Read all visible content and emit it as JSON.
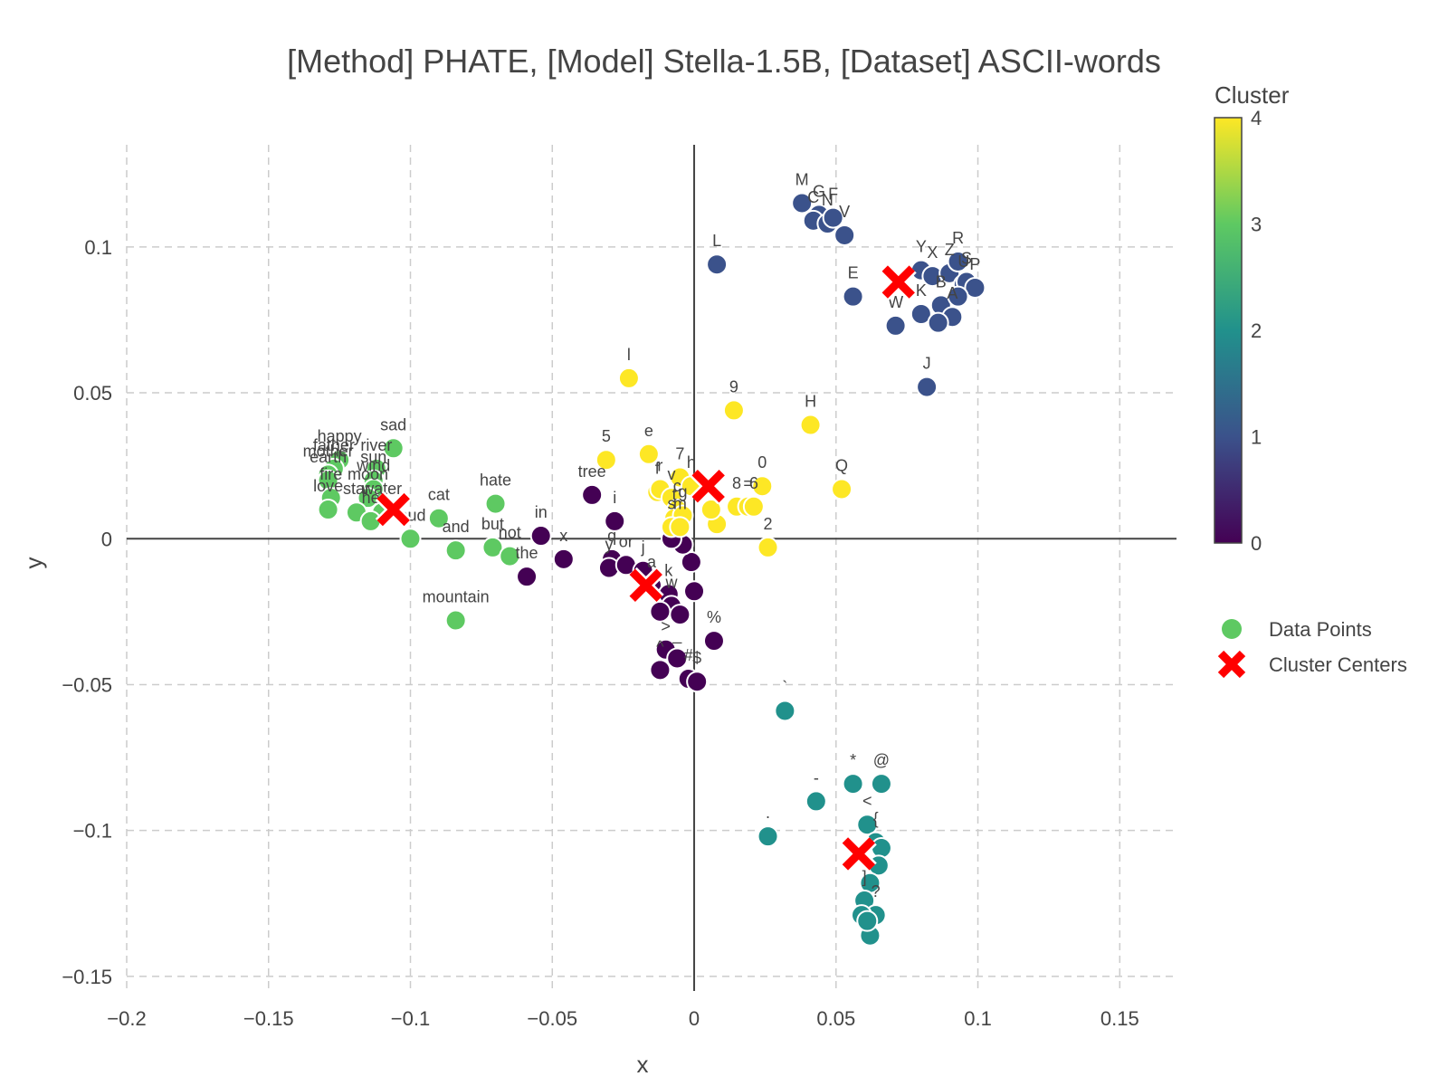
{
  "chart_data": {
    "type": "scatter",
    "title": "[Method] PHATE, [Model] Stella-1.5B, [Dataset] ASCII-words",
    "xlabel": "x",
    "ylabel": "y",
    "xlim": [
      -0.2,
      0.17
    ],
    "ylim": [
      -0.155,
      0.135
    ],
    "x_ticks": [
      -0.2,
      -0.15,
      -0.1,
      -0.05,
      0,
      0.05,
      0.1,
      0.15
    ],
    "x_tick_labels": [
      "−0.2",
      "−0.15",
      "−0.1",
      "−0.05",
      "0",
      "0.05",
      "0.1",
      "0.15"
    ],
    "y_ticks": [
      -0.15,
      -0.1,
      -0.05,
      0,
      0.05,
      0.1
    ],
    "y_tick_labels": [
      "−0.15",
      "−0.1",
      "−0.05",
      "0",
      "0.05",
      "0.1"
    ],
    "colorbar": {
      "title": "Cluster",
      "range": [
        0,
        4
      ],
      "ticks": [
        0,
        1,
        2,
        3,
        4
      ],
      "tick_labels": [
        "0",
        "1",
        "2",
        "3",
        "4"
      ],
      "colors": [
        "#440154",
        "#3b528b",
        "#21918c",
        "#5ec962",
        "#fde725"
      ]
    },
    "legend": [
      {
        "name": "Data Points",
        "marker": "circle",
        "color": "#5ec962"
      },
      {
        "name": "Cluster Centers",
        "marker": "x",
        "color": "#ff0000"
      }
    ],
    "centers": [
      {
        "cluster": 0,
        "x": -0.017,
        "y": -0.016
      },
      {
        "cluster": 1,
        "x": 0.072,
        "y": 0.088
      },
      {
        "cluster": 2,
        "x": 0.058,
        "y": -0.108
      },
      {
        "cluster": 3,
        "x": -0.106,
        "y": 0.01
      },
      {
        "cluster": 4,
        "x": 0.005,
        "y": 0.018
      }
    ],
    "points": [
      {
        "label": "happy",
        "x": -0.125,
        "y": 0.027,
        "cluster": 3
      },
      {
        "label": "father",
        "x": -0.127,
        "y": 0.024,
        "cluster": 3
      },
      {
        "label": "river",
        "x": -0.112,
        "y": 0.024,
        "cluster": 3
      },
      {
        "label": "sad",
        "x": -0.106,
        "y": 0.031,
        "cluster": 3
      },
      {
        "label": "mother",
        "x": -0.129,
        "y": 0.022,
        "cluster": 3
      },
      {
        "label": "earth",
        "x": -0.129,
        "y": 0.02,
        "cluster": 3
      },
      {
        "label": "sun",
        "x": -0.113,
        "y": 0.02,
        "cluster": 3
      },
      {
        "label": "wind",
        "x": -0.113,
        "y": 0.017,
        "cluster": 3
      },
      {
        "label": "fire",
        "x": -0.128,
        "y": 0.014,
        "cluster": 3
      },
      {
        "label": "moon",
        "x": -0.115,
        "y": 0.014,
        "cluster": 3
      },
      {
        "label": "love",
        "x": -0.129,
        "y": 0.01,
        "cluster": 3
      },
      {
        "label": "star",
        "x": -0.119,
        "y": 0.009,
        "cluster": 3
      },
      {
        "label": "water",
        "x": -0.11,
        "y": 0.009,
        "cluster": 3
      },
      {
        "label": "he",
        "x": -0.114,
        "y": 0.006,
        "cluster": 3
      },
      {
        "label": "loud",
        "x": -0.1,
        "y": 0.0,
        "cluster": 3
      },
      {
        "label": "cat",
        "x": -0.09,
        "y": 0.007,
        "cluster": 3
      },
      {
        "label": "hate",
        "x": -0.07,
        "y": 0.012,
        "cluster": 3
      },
      {
        "label": "and",
        "x": -0.084,
        "y": -0.004,
        "cluster": 3
      },
      {
        "label": "but",
        "x": -0.071,
        "y": -0.003,
        "cluster": 3
      },
      {
        "label": "not",
        "x": -0.065,
        "y": -0.006,
        "cluster": 3
      },
      {
        "label": "mountain",
        "x": -0.084,
        "y": -0.028,
        "cluster": 3
      },
      {
        "label": "in",
        "x": -0.054,
        "y": 0.001,
        "cluster": 0
      },
      {
        "label": "x",
        "x": -0.046,
        "y": -0.007,
        "cluster": 0
      },
      {
        "label": "the",
        "x": -0.059,
        "y": -0.013,
        "cluster": 0
      },
      {
        "label": "tree",
        "x": -0.036,
        "y": 0.015,
        "cluster": 0
      },
      {
        "label": "i",
        "x": -0.028,
        "y": 0.006,
        "cluster": 0
      },
      {
        "label": "q",
        "x": -0.029,
        "y": -0.007,
        "cluster": 0
      },
      {
        "label": "y",
        "x": -0.03,
        "y": -0.01,
        "cluster": 0
      },
      {
        "label": "or",
        "x": -0.024,
        "y": -0.009,
        "cluster": 0
      },
      {
        "label": "j",
        "x": -0.018,
        "y": -0.011,
        "cluster": 0
      },
      {
        "label": "a",
        "x": -0.015,
        "y": -0.016,
        "cluster": 0
      },
      {
        "label": "k",
        "x": -0.009,
        "y": -0.019,
        "cluster": 0
      },
      {
        "label": "w",
        "x": -0.008,
        "y": -0.023,
        "cluster": 0
      },
      {
        "label": "",
        "x": -0.012,
        "y": -0.025,
        "cluster": 0
      },
      {
        "label": "",
        "x": -0.005,
        "y": -0.026,
        "cluster": 0
      },
      {
        "label": "",
        "x": 0.0,
        "y": -0.018,
        "cluster": 0
      },
      {
        "label": "",
        "x": -0.001,
        "y": -0.008,
        "cluster": 0
      },
      {
        "label": "",
        "x": -0.004,
        "y": -0.002,
        "cluster": 0
      },
      {
        "label": "",
        "x": -0.008,
        "y": 0.0,
        "cluster": 0
      },
      {
        "label": ">",
        "x": -0.01,
        "y": -0.038,
        "cluster": 0
      },
      {
        "label": "^",
        "x": -0.012,
        "y": -0.045,
        "cluster": 0
      },
      {
        "label": "_",
        "x": -0.006,
        "y": -0.041,
        "cluster": 0
      },
      {
        "label": "#",
        "x": -0.002,
        "y": -0.048,
        "cluster": 0
      },
      {
        "label": "$",
        "x": 0.001,
        "y": -0.049,
        "cluster": 0
      },
      {
        "label": "%",
        "x": 0.007,
        "y": -0.035,
        "cluster": 0
      },
      {
        "label": "l",
        "x": -0.023,
        "y": 0.055,
        "cluster": 4
      },
      {
        "label": "e",
        "x": -0.016,
        "y": 0.029,
        "cluster": 4
      },
      {
        "label": "5",
        "x": -0.031,
        "y": 0.027,
        "cluster": 4
      },
      {
        "label": "7",
        "x": -0.005,
        "y": 0.021,
        "cluster": 4
      },
      {
        "label": "f",
        "x": -0.013,
        "y": 0.016,
        "cluster": 4
      },
      {
        "label": "r",
        "x": -0.012,
        "y": 0.017,
        "cluster": 4
      },
      {
        "label": "h",
        "x": -0.001,
        "y": 0.018,
        "cluster": 4
      },
      {
        "label": "v",
        "x": -0.008,
        "y": 0.014,
        "cluster": 4
      },
      {
        "label": "c",
        "x": -0.006,
        "y": 0.01,
        "cluster": 4
      },
      {
        "label": "t",
        "x": -0.007,
        "y": 0.007,
        "cluster": 4
      },
      {
        "label": "g",
        "x": -0.004,
        "y": 0.008,
        "cluster": 4
      },
      {
        "label": "s",
        "x": -0.008,
        "y": 0.004,
        "cluster": 4
      },
      {
        "label": "m",
        "x": -0.005,
        "y": 0.004,
        "cluster": 4
      },
      {
        "label": "8",
        "x": 0.015,
        "y": 0.011,
        "cluster": 4
      },
      {
        "label": "=",
        "x": 0.019,
        "y": 0.011,
        "cluster": 4
      },
      {
        "label": "6",
        "x": 0.021,
        "y": 0.011,
        "cluster": 4
      },
      {
        "label": "0",
        "x": 0.024,
        "y": 0.018,
        "cluster": 4
      },
      {
        "label": "2",
        "x": 0.026,
        "y": -0.003,
        "cluster": 4
      },
      {
        "label": "",
        "x": 0.008,
        "y": 0.005,
        "cluster": 4
      },
      {
        "label": "",
        "x": 0.006,
        "y": 0.01,
        "cluster": 4
      },
      {
        "label": "9",
        "x": 0.014,
        "y": 0.044,
        "cluster": 4
      },
      {
        "label": "H",
        "x": 0.041,
        "y": 0.039,
        "cluster": 4
      },
      {
        "label": "Q",
        "x": 0.052,
        "y": 0.017,
        "cluster": 4
      },
      {
        "label": "L",
        "x": 0.008,
        "y": 0.094,
        "cluster": 1
      },
      {
        "label": "M",
        "x": 0.038,
        "y": 0.115,
        "cluster": 1
      },
      {
        "label": "G",
        "x": 0.044,
        "y": 0.111,
        "cluster": 1
      },
      {
        "label": "C",
        "x": 0.042,
        "y": 0.109,
        "cluster": 1
      },
      {
        "label": "N",
        "x": 0.047,
        "y": 0.108,
        "cluster": 1
      },
      {
        "label": "F",
        "x": 0.049,
        "y": 0.11,
        "cluster": 1
      },
      {
        "label": "V",
        "x": 0.053,
        "y": 0.104,
        "cluster": 1
      },
      {
        "label": "E",
        "x": 0.056,
        "y": 0.083,
        "cluster": 1
      },
      {
        "label": "W",
        "x": 0.071,
        "y": 0.073,
        "cluster": 1
      },
      {
        "label": "K",
        "x": 0.08,
        "y": 0.077,
        "cluster": 1
      },
      {
        "label": "Y",
        "x": 0.08,
        "y": 0.092,
        "cluster": 1
      },
      {
        "label": "X",
        "x": 0.084,
        "y": 0.09,
        "cluster": 1
      },
      {
        "label": "Z",
        "x": 0.09,
        "y": 0.091,
        "cluster": 1
      },
      {
        "label": "R",
        "x": 0.093,
        "y": 0.095,
        "cluster": 1
      },
      {
        "label": "U",
        "x": 0.095,
        "y": 0.087,
        "cluster": 1
      },
      {
        "label": "S",
        "x": 0.096,
        "y": 0.088,
        "cluster": 1
      },
      {
        "label": "P",
        "x": 0.099,
        "y": 0.086,
        "cluster": 1
      },
      {
        "label": "B",
        "x": 0.087,
        "y": 0.08,
        "cluster": 1
      },
      {
        "label": "A",
        "x": 0.091,
        "y": 0.076,
        "cluster": 1
      },
      {
        "label": "",
        "x": 0.086,
        "y": 0.074,
        "cluster": 1
      },
      {
        "label": "",
        "x": 0.093,
        "y": 0.083,
        "cluster": 1
      },
      {
        "label": "J",
        "x": 0.082,
        "y": 0.052,
        "cluster": 1
      },
      {
        "label": "`",
        "x": 0.032,
        "y": -0.059,
        "cluster": 2
      },
      {
        "label": "*",
        "x": 0.056,
        "y": -0.084,
        "cluster": 2
      },
      {
        "label": "@",
        "x": 0.066,
        "y": -0.084,
        "cluster": 2
      },
      {
        "label": "-",
        "x": 0.043,
        "y": -0.09,
        "cluster": 2
      },
      {
        "label": ".",
        "x": 0.026,
        "y": -0.102,
        "cluster": 2
      },
      {
        "label": "<",
        "x": 0.061,
        "y": -0.098,
        "cluster": 2
      },
      {
        "label": "{",
        "x": 0.064,
        "y": -0.104,
        "cluster": 2
      },
      {
        "label": "",
        "x": 0.066,
        "y": -0.106,
        "cluster": 2
      },
      {
        "label": "",
        "x": 0.065,
        "y": -0.112,
        "cluster": 2
      },
      {
        "label": "",
        "x": 0.062,
        "y": -0.118,
        "cluster": 2
      },
      {
        "label": "]",
        "x": 0.06,
        "y": -0.124,
        "cluster": 2
      },
      {
        "label": "?",
        "x": 0.064,
        "y": -0.129,
        "cluster": 2
      },
      {
        "label": "",
        "x": 0.059,
        "y": -0.129,
        "cluster": 2
      },
      {
        "label": "",
        "x": 0.062,
        "y": -0.136,
        "cluster": 2
      },
      {
        "label": "",
        "x": 0.061,
        "y": -0.131,
        "cluster": 2
      }
    ]
  }
}
